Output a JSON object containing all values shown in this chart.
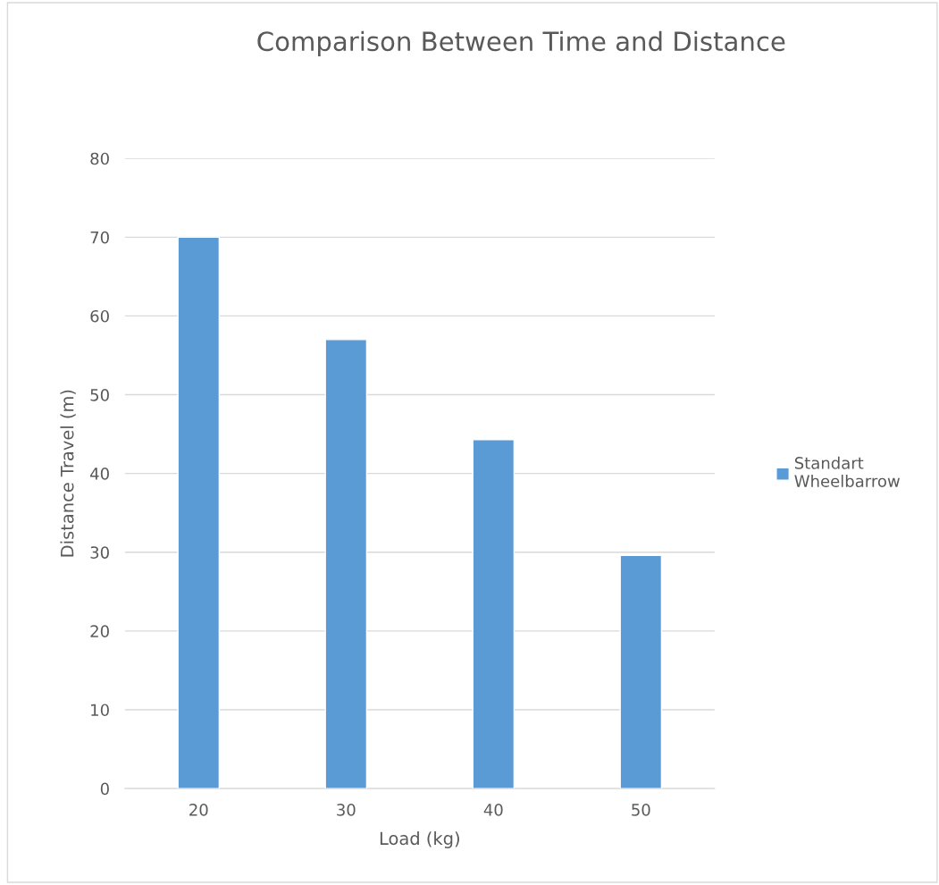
{
  "chart_data": {
    "type": "bar",
    "title": "Comparison Between Time and Distance",
    "xlabel": "Load (kg)",
    "ylabel": "Distance Travel (m)",
    "categories": [
      "20",
      "30",
      "40",
      "50"
    ],
    "series": [
      {
        "name": "Standart\nWheelbarrow",
        "color": "#5b9bd5",
        "values": [
          70,
          57,
          44.3,
          29.6
        ]
      }
    ],
    "ylim": [
      0,
      80
    ],
    "yticks": [
      0,
      10,
      20,
      30,
      40,
      50,
      60,
      70,
      80
    ],
    "grid": "y",
    "legend": "right"
  }
}
